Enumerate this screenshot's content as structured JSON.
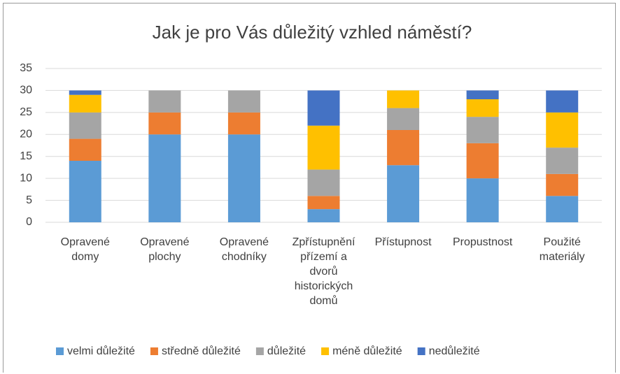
{
  "chart_data": {
    "type": "stacked_bar",
    "title": "Jak je pro Vás důležitý vzhled náměstí?",
    "categories": [
      "Opravené domy",
      "Opravené plochy",
      "Opravené chodníky",
      "Zpřístupnění přízemí a dvorů historických domů",
      "Přístupnost",
      "Propustnost",
      "Použité materiály"
    ],
    "series": [
      {
        "name": "velmi důležité",
        "color": "#5b9bd5",
        "values": [
          14,
          20,
          20,
          3,
          13,
          10,
          6
        ]
      },
      {
        "name": "středně důležité",
        "color": "#ed7d31",
        "values": [
          5,
          5,
          5,
          3,
          8,
          8,
          5
        ]
      },
      {
        "name": "důležité",
        "color": "#a5a5a5",
        "values": [
          6,
          5,
          5,
          6,
          5,
          6,
          6
        ]
      },
      {
        "name": "méně důležité",
        "color": "#ffc000",
        "values": [
          4,
          0,
          0,
          10,
          4,
          4,
          8
        ]
      },
      {
        "name": "nedůležité",
        "color": "#4472c4",
        "values": [
          1,
          0,
          0,
          8,
          0,
          2,
          5
        ]
      }
    ],
    "ylim": [
      0,
      35
    ],
    "yticks": [
      0,
      5,
      10,
      15,
      20,
      25,
      30,
      35
    ],
    "grid": true,
    "legend": "bottom"
  }
}
